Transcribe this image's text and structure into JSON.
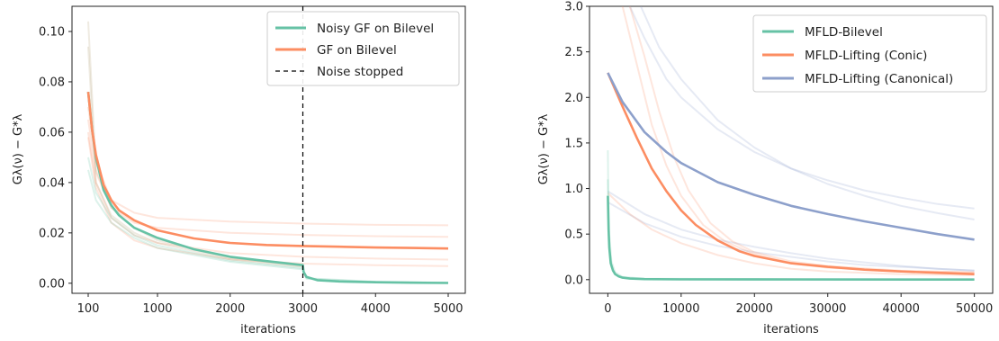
{
  "chart_data": [
    {
      "type": "line",
      "xlabel": "iterations",
      "ylabel": "Gλ(ν) − G*λ",
      "xlim": [
        0,
        5200
      ],
      "ylim": [
        -0.004,
        0.11
      ],
      "x_ticks": [
        100,
        1000,
        2000,
        3000,
        4000,
        5000
      ],
      "x_tick_labels": [
        "100",
        "1000",
        "2000",
        "3000",
        "4000",
        "5000"
      ],
      "y_ticks": [
        0.0,
        0.02,
        0.04,
        0.06,
        0.08,
        0.1
      ],
      "y_tick_labels": [
        "0.00",
        "0.02",
        "0.04",
        "0.06",
        "0.08",
        "0.10"
      ],
      "x_scale_note": "x axis is piecewise: 100→1000 spans the first tick interval, then linear to 5000",
      "legend_position": "top-right",
      "legend": [
        {
          "label": "Noisy GF on Bilevel",
          "color": "#66c2a5",
          "style": "solid"
        },
        {
          "label": "GF on Bilevel",
          "color": "#fc8d62",
          "style": "solid"
        },
        {
          "label": "Noise stopped",
          "color": "#000000",
          "style": "dashed"
        }
      ],
      "vline_x": 3000,
      "series": [
        {
          "key": "noisy",
          "color": "#66c2a5",
          "x": [
            100,
            150,
            200,
            300,
            400,
            500,
            700,
            1000,
            1500,
            2000,
            2500,
            3000,
            3010,
            3050,
            3200,
            3500,
            4000,
            4500,
            5000
          ],
          "y": [
            0.076,
            0.061,
            0.05,
            0.037,
            0.031,
            0.027,
            0.022,
            0.018,
            0.0135,
            0.0105,
            0.0088,
            0.0072,
            0.0045,
            0.0025,
            0.0012,
            0.0007,
            0.0004,
            0.0002,
            0.0001
          ]
        },
        {
          "key": "gf",
          "color": "#fc8d62",
          "x": [
            100,
            150,
            200,
            300,
            400,
            500,
            700,
            1000,
            1500,
            2000,
            2500,
            3000,
            3500,
            4000,
            4500,
            5000
          ],
          "y": [
            0.076,
            0.061,
            0.051,
            0.039,
            0.033,
            0.029,
            0.025,
            0.021,
            0.0178,
            0.016,
            0.0152,
            0.0148,
            0.0145,
            0.0142,
            0.014,
            0.0138
          ]
        }
      ],
      "faint_series": [
        {
          "color": "#fc8d62",
          "x": [
            100,
            200,
            400,
            700,
            1000,
            2000,
            3000,
            4000,
            5000
          ],
          "y": [
            0.07,
            0.048,
            0.033,
            0.028,
            0.026,
            0.0245,
            0.0237,
            0.0232,
            0.023
          ]
        },
        {
          "color": "#fc8d62",
          "x": [
            100,
            200,
            400,
            700,
            1000,
            2000,
            3000,
            4000,
            5000
          ],
          "y": [
            0.065,
            0.044,
            0.03,
            0.024,
            0.022,
            0.02,
            0.0192,
            0.0187,
            0.0184
          ]
        },
        {
          "color": "#fc8d62",
          "x": [
            100,
            200,
            400,
            700,
            1000,
            2000,
            3000,
            4000,
            5000
          ],
          "y": [
            0.06,
            0.04,
            0.026,
            0.019,
            0.016,
            0.012,
            0.0105,
            0.0098,
            0.0094
          ]
        },
        {
          "color": "#fc8d62",
          "x": [
            100,
            200,
            400,
            700,
            1000,
            2000,
            3000,
            4000,
            5000
          ],
          "y": [
            0.058,
            0.038,
            0.024,
            0.017,
            0.014,
            0.0095,
            0.0078,
            0.0072,
            0.0068
          ]
        },
        {
          "color": "#66c2a5",
          "x": [
            100,
            200,
            400,
            700,
            1000,
            2000,
            3000,
            3050,
            4000,
            5000
          ],
          "y": [
            0.05,
            0.036,
            0.026,
            0.019,
            0.015,
            0.009,
            0.006,
            0.002,
            0.0006,
            0.0002
          ]
        },
        {
          "color": "#66c2a5",
          "x": [
            100,
            200,
            400,
            700,
            1000,
            2000,
            3000,
            3050,
            4000,
            5000
          ],
          "y": [
            0.045,
            0.033,
            0.024,
            0.018,
            0.014,
            0.0085,
            0.0055,
            0.0018,
            0.0005,
            0.0002
          ]
        },
        {
          "color": "#b5a27a",
          "x": [
            100,
            200,
            400,
            700,
            1000,
            2000,
            3000
          ],
          "y": [
            0.104,
            0.045,
            0.03,
            0.022,
            0.017,
            0.01,
            0.0068
          ]
        },
        {
          "color": "#b5a27a",
          "x": [
            100,
            200,
            400,
            700,
            1000,
            2000,
            3000
          ],
          "y": [
            0.094,
            0.04,
            0.027,
            0.02,
            0.016,
            0.0095,
            0.0065
          ]
        }
      ]
    },
    {
      "type": "line",
      "xlabel": "iterations",
      "ylabel": "Gλ(ν) − G*λ",
      "xlim": [
        -2500,
        52500
      ],
      "ylim": [
        -0.15,
        3.0
      ],
      "x_ticks": [
        0,
        10000,
        20000,
        30000,
        40000,
        50000
      ],
      "x_tick_labels": [
        "0",
        "10000",
        "20000",
        "30000",
        "40000",
        "50000"
      ],
      "y_ticks": [
        0.0,
        0.5,
        1.0,
        1.5,
        2.0,
        2.5,
        3.0
      ],
      "y_tick_labels": [
        "0.0",
        "0.5",
        "1.0",
        "1.5",
        "2.0",
        "2.5",
        "3.0"
      ],
      "legend_position": "top-right",
      "legend": [
        {
          "label": "MFLD-Bilevel",
          "color": "#66c2a5",
          "style": "solid"
        },
        {
          "label": "MFLD-Lifting (Conic)",
          "color": "#fc8d62",
          "style": "solid"
        },
        {
          "label": "MFLD-Lifting (Canonical)",
          "color": "#8da0cb",
          "style": "solid"
        }
      ],
      "series": [
        {
          "key": "bilevel",
          "color": "#66c2a5",
          "x": [
            0,
            100,
            200,
            400,
            700,
            1000,
            1500,
            2000,
            3000,
            5000,
            10000,
            20000,
            50000
          ],
          "y": [
            0.92,
            0.55,
            0.35,
            0.18,
            0.1,
            0.06,
            0.035,
            0.022,
            0.012,
            0.006,
            0.003,
            0.002,
            0.001
          ]
        },
        {
          "key": "conic",
          "color": "#fc8d62",
          "x": [
            0,
            2000,
            4000,
            6000,
            8000,
            10000,
            12000,
            15000,
            18000,
            20000,
            25000,
            30000,
            35000,
            40000,
            45000,
            50000
          ],
          "y": [
            2.27,
            1.9,
            1.55,
            1.22,
            0.97,
            0.76,
            0.6,
            0.43,
            0.31,
            0.26,
            0.18,
            0.14,
            0.11,
            0.09,
            0.075,
            0.06
          ]
        },
        {
          "key": "canonical",
          "color": "#8da0cb",
          "x": [
            0,
            2000,
            5000,
            8000,
            10000,
            15000,
            20000,
            25000,
            30000,
            35000,
            40000,
            45000,
            50000
          ],
          "y": [
            2.27,
            1.95,
            1.62,
            1.4,
            1.28,
            1.07,
            0.93,
            0.81,
            0.72,
            0.64,
            0.57,
            0.5,
            0.44
          ]
        }
      ],
      "faint_series": [
        {
          "color": "#8da0cb",
          "x": [
            3000,
            5000,
            8000,
            10000,
            15000,
            20000,
            25000,
            30000,
            35000,
            40000,
            45000,
            50000
          ],
          "y": [
            3.0,
            2.65,
            2.2,
            2.0,
            1.65,
            1.4,
            1.22,
            1.09,
            0.98,
            0.9,
            0.83,
            0.78
          ]
        },
        {
          "color": "#8da0cb",
          "x": [
            4500,
            7000,
            10000,
            15000,
            20000,
            25000,
            30000,
            35000,
            40000,
            45000,
            50000
          ],
          "y": [
            3.0,
            2.55,
            2.2,
            1.75,
            1.45,
            1.22,
            1.05,
            0.92,
            0.81,
            0.73,
            0.66
          ]
        },
        {
          "color": "#8da0cb",
          "x": [
            0,
            5000,
            10000,
            15000,
            20000,
            25000,
            30000,
            35000,
            40000,
            45000,
            50000
          ],
          "y": [
            0.97,
            0.72,
            0.55,
            0.44,
            0.36,
            0.29,
            0.23,
            0.19,
            0.15,
            0.12,
            0.1
          ]
        },
        {
          "color": "#8da0cb",
          "x": [
            0,
            5000,
            10000,
            15000,
            20000,
            25000,
            30000,
            35000,
            40000,
            45000,
            50000
          ],
          "y": [
            0.85,
            0.62,
            0.47,
            0.37,
            0.3,
            0.25,
            0.2,
            0.16,
            0.14,
            0.12,
            0.1
          ]
        },
        {
          "color": "#fc8d62",
          "x": [
            2000,
            4000,
            6000,
            8000,
            10000,
            13000,
            16000,
            20000,
            25000,
            30000,
            40000,
            50000
          ],
          "y": [
            3.0,
            2.35,
            1.7,
            1.25,
            0.92,
            0.6,
            0.42,
            0.28,
            0.18,
            0.13,
            0.09,
            0.08
          ]
        },
        {
          "color": "#fc8d62",
          "x": [
            3000,
            5000,
            7000,
            9000,
            11000,
            14000,
            17000,
            20000,
            25000,
            30000,
            40000,
            50000
          ],
          "y": [
            3.0,
            2.45,
            1.85,
            1.35,
            0.98,
            0.62,
            0.42,
            0.3,
            0.2,
            0.15,
            0.1,
            0.08
          ]
        },
        {
          "color": "#fc8d62",
          "x": [
            0,
            3000,
            6000,
            10000,
            15000,
            20000,
            25000,
            30000,
            40000,
            50000
          ],
          "y": [
            0.95,
            0.72,
            0.55,
            0.4,
            0.27,
            0.18,
            0.12,
            0.09,
            0.06,
            0.05
          ]
        },
        {
          "color": "#66c2a5",
          "x": [
            0,
            50,
            200,
            500,
            1000,
            2000,
            5000,
            50000
          ],
          "y": [
            1.42,
            1.0,
            0.5,
            0.2,
            0.08,
            0.03,
            0.01,
            0.002
          ]
        },
        {
          "color": "#66c2a5",
          "x": [
            0,
            50,
            200,
            500,
            1000,
            2000,
            5000,
            50000
          ],
          "y": [
            1.1,
            0.7,
            0.35,
            0.14,
            0.06,
            0.02,
            0.008,
            0.002
          ]
        }
      ]
    }
  ]
}
